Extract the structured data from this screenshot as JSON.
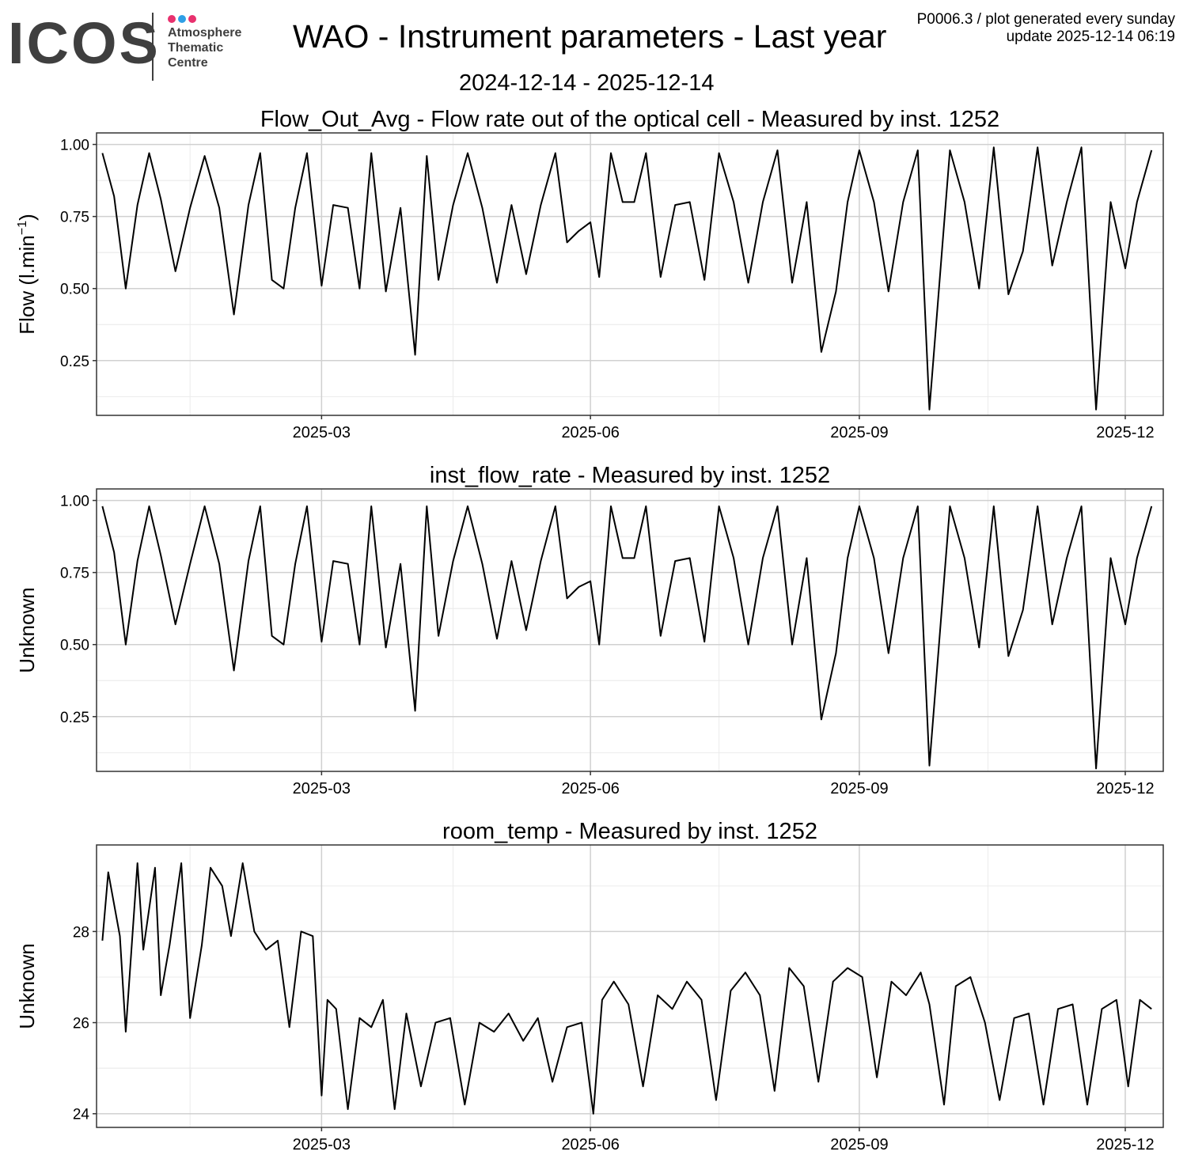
{
  "header": {
    "logo_text": "ICOS",
    "logo_sub": [
      "Atmosphere",
      "Thematic",
      "Centre"
    ],
    "logo_dot_colors": [
      "#e8316e",
      "#2e9fe6",
      "#e8316e"
    ],
    "title": "WAO - Instrument parameters - Last year",
    "date_range": "2024-12-14 - 2025-12-14",
    "meta_line1": "P0006.3 / plot generated every sunday",
    "meta_line2": "update  2025-12-14 06:19"
  },
  "colors": {
    "line": "#000000",
    "major_grid": "#d0d0d0",
    "minor_grid": "#ebebeb",
    "border": "#333333"
  },
  "chart_data": [
    {
      "type": "line",
      "title": "Flow_Out_Avg - Flow rate out of the optical cell - Measured by inst. 1252",
      "ylabel": "Flow (l.min",
      "ylabel_sup": "−1",
      "ylabel_end": ")",
      "xlim": [
        "2024-12-14",
        "2025-12-14"
      ],
      "ylim": [
        0.06,
        1.04
      ],
      "yticks": [
        0.25,
        0.5,
        0.75,
        1.0
      ],
      "ytick_labels": [
        "0.25",
        "0.50",
        "0.75",
        "1.00"
      ],
      "xticks": [
        "2025-03-01",
        "2025-06-01",
        "2025-09-01",
        "2025-12-01"
      ],
      "xtick_labels": [
        "2025-03",
        "2025-06",
        "2025-09",
        "2025-12"
      ],
      "grid": true,
      "series": [
        {
          "x": [
            "2024-12-16",
            "2024-12-20",
            "2024-12-24",
            "2024-12-28",
            "2025-01-01",
            "2025-01-05",
            "2025-01-10",
            "2025-01-15",
            "2025-01-20",
            "2025-01-25",
            "2025-01-30",
            "2025-02-04",
            "2025-02-08",
            "2025-02-12",
            "2025-02-16",
            "2025-02-20",
            "2025-02-24",
            "2025-03-01",
            "2025-03-05",
            "2025-03-10",
            "2025-03-14",
            "2025-03-18",
            "2025-03-23",
            "2025-03-28",
            "2025-04-02",
            "2025-04-06",
            "2025-04-10",
            "2025-04-15",
            "2025-04-20",
            "2025-04-25",
            "2025-04-30",
            "2025-05-05",
            "2025-05-10",
            "2025-05-15",
            "2025-05-20",
            "2025-05-24",
            "2025-05-28",
            "2025-06-01",
            "2025-06-04",
            "2025-06-08",
            "2025-06-12",
            "2025-06-16",
            "2025-06-20",
            "2025-06-25",
            "2025-06-30",
            "2025-07-05",
            "2025-07-10",
            "2025-07-15",
            "2025-07-20",
            "2025-07-25",
            "2025-07-30",
            "2025-08-04",
            "2025-08-09",
            "2025-08-14",
            "2025-08-19",
            "2025-08-24",
            "2025-08-28",
            "2025-09-01",
            "2025-09-06",
            "2025-09-11",
            "2025-09-16",
            "2025-09-21",
            "2025-09-25",
            "2025-10-02",
            "2025-10-07",
            "2025-10-12",
            "2025-10-17",
            "2025-10-22",
            "2025-10-27",
            "2025-11-01",
            "2025-11-06",
            "2025-11-11",
            "2025-11-16",
            "2025-11-21",
            "2025-11-26",
            "2025-12-01",
            "2025-12-05",
            "2025-12-10"
          ],
          "y": [
            0.97,
            0.82,
            0.5,
            0.79,
            0.97,
            0.81,
            0.56,
            0.78,
            0.96,
            0.78,
            0.41,
            0.79,
            0.97,
            0.53,
            0.5,
            0.78,
            0.97,
            0.51,
            0.79,
            0.78,
            0.5,
            0.97,
            0.49,
            0.78,
            0.27,
            0.96,
            0.53,
            0.79,
            0.97,
            0.78,
            0.52,
            0.79,
            0.55,
            0.79,
            0.97,
            0.66,
            0.7,
            0.73,
            0.54,
            0.97,
            0.8,
            0.8,
            0.97,
            0.54,
            0.79,
            0.8,
            0.53,
            0.97,
            0.8,
            0.52,
            0.8,
            0.98,
            0.52,
            0.8,
            0.28,
            0.49,
            0.8,
            0.98,
            0.8,
            0.49,
            0.8,
            0.98,
            0.08,
            0.98,
            0.8,
            0.5,
            0.99,
            0.48,
            0.63,
            0.99,
            0.58,
            0.8,
            0.99,
            0.08,
            0.8,
            0.57,
            0.8,
            0.98
          ]
        }
      ]
    },
    {
      "type": "line",
      "title": "inst_flow_rate - Measured by inst. 1252",
      "ylabel": "Unknown",
      "ylabel_sup": "",
      "ylabel_end": "",
      "xlim": [
        "2024-12-14",
        "2025-12-14"
      ],
      "ylim": [
        0.06,
        1.04
      ],
      "yticks": [
        0.25,
        0.5,
        0.75,
        1.0
      ],
      "ytick_labels": [
        "0.25",
        "0.50",
        "0.75",
        "1.00"
      ],
      "xticks": [
        "2025-03-01",
        "2025-06-01",
        "2025-09-01",
        "2025-12-01"
      ],
      "xtick_labels": [
        "2025-03",
        "2025-06",
        "2025-09",
        "2025-12"
      ],
      "grid": true,
      "series": [
        {
          "x": [
            "2024-12-16",
            "2024-12-20",
            "2024-12-24",
            "2024-12-28",
            "2025-01-01",
            "2025-01-05",
            "2025-01-10",
            "2025-01-15",
            "2025-01-20",
            "2025-01-25",
            "2025-01-30",
            "2025-02-04",
            "2025-02-08",
            "2025-02-12",
            "2025-02-16",
            "2025-02-20",
            "2025-02-24",
            "2025-03-01",
            "2025-03-05",
            "2025-03-10",
            "2025-03-14",
            "2025-03-18",
            "2025-03-23",
            "2025-03-28",
            "2025-04-02",
            "2025-04-06",
            "2025-04-10",
            "2025-04-15",
            "2025-04-20",
            "2025-04-25",
            "2025-04-30",
            "2025-05-05",
            "2025-05-10",
            "2025-05-15",
            "2025-05-20",
            "2025-05-24",
            "2025-05-28",
            "2025-06-01",
            "2025-06-04",
            "2025-06-08",
            "2025-06-12",
            "2025-06-16",
            "2025-06-20",
            "2025-06-25",
            "2025-06-30",
            "2025-07-05",
            "2025-07-10",
            "2025-07-15",
            "2025-07-20",
            "2025-07-25",
            "2025-07-30",
            "2025-08-04",
            "2025-08-09",
            "2025-08-14",
            "2025-08-19",
            "2025-08-24",
            "2025-08-28",
            "2025-09-01",
            "2025-09-06",
            "2025-09-11",
            "2025-09-16",
            "2025-09-21",
            "2025-09-25",
            "2025-10-02",
            "2025-10-07",
            "2025-10-12",
            "2025-10-17",
            "2025-10-22",
            "2025-10-27",
            "2025-11-01",
            "2025-11-06",
            "2025-11-11",
            "2025-11-16",
            "2025-11-21",
            "2025-11-26",
            "2025-12-01",
            "2025-12-05",
            "2025-12-10"
          ],
          "y": [
            0.98,
            0.82,
            0.5,
            0.79,
            0.98,
            0.81,
            0.57,
            0.78,
            0.98,
            0.78,
            0.41,
            0.79,
            0.98,
            0.53,
            0.5,
            0.78,
            0.98,
            0.51,
            0.79,
            0.78,
            0.5,
            0.98,
            0.49,
            0.78,
            0.27,
            0.98,
            0.53,
            0.79,
            0.98,
            0.78,
            0.52,
            0.79,
            0.55,
            0.79,
            0.98,
            0.66,
            0.7,
            0.72,
            0.5,
            0.98,
            0.8,
            0.8,
            0.98,
            0.53,
            0.79,
            0.8,
            0.51,
            0.98,
            0.8,
            0.5,
            0.8,
            0.98,
            0.5,
            0.8,
            0.24,
            0.47,
            0.8,
            0.98,
            0.8,
            0.47,
            0.8,
            0.98,
            0.08,
            0.98,
            0.8,
            0.49,
            0.98,
            0.46,
            0.62,
            0.98,
            0.57,
            0.8,
            0.98,
            0.07,
            0.8,
            0.57,
            0.8,
            0.98
          ]
        }
      ]
    },
    {
      "type": "line",
      "title": "room_temp - Measured by inst. 1252",
      "ylabel": "Unknown",
      "ylabel_sup": "",
      "ylabel_end": "",
      "xlim": [
        "2024-12-14",
        "2025-12-14"
      ],
      "ylim": [
        23.7,
        29.9
      ],
      "yticks": [
        24,
        26,
        28
      ],
      "ytick_labels": [
        "24",
        "26",
        "28"
      ],
      "xticks": [
        "2025-03-01",
        "2025-06-01",
        "2025-09-01",
        "2025-12-01"
      ],
      "xtick_labels": [
        "2025-03",
        "2025-06",
        "2025-09",
        "2025-12"
      ],
      "grid": true,
      "series": [
        {
          "x": [
            "2024-12-16",
            "2024-12-18",
            "2024-12-22",
            "2024-12-24",
            "2024-12-28",
            "2024-12-30",
            "2025-01-03",
            "2025-01-05",
            "2025-01-08",
            "2025-01-12",
            "2025-01-15",
            "2025-01-19",
            "2025-01-22",
            "2025-01-26",
            "2025-01-29",
            "2025-02-02",
            "2025-02-06",
            "2025-02-10",
            "2025-02-14",
            "2025-02-18",
            "2025-02-22",
            "2025-02-26",
            "2025-03-01",
            "2025-03-03",
            "2025-03-06",
            "2025-03-10",
            "2025-03-14",
            "2025-03-18",
            "2025-03-22",
            "2025-03-26",
            "2025-03-30",
            "2025-04-04",
            "2025-04-09",
            "2025-04-14",
            "2025-04-19",
            "2025-04-24",
            "2025-04-29",
            "2025-05-04",
            "2025-05-09",
            "2025-05-14",
            "2025-05-19",
            "2025-05-24",
            "2025-05-29",
            "2025-06-02",
            "2025-06-05",
            "2025-06-09",
            "2025-06-14",
            "2025-06-19",
            "2025-06-24",
            "2025-06-29",
            "2025-07-04",
            "2025-07-09",
            "2025-07-14",
            "2025-07-19",
            "2025-07-24",
            "2025-07-29",
            "2025-08-03",
            "2025-08-08",
            "2025-08-13",
            "2025-08-18",
            "2025-08-23",
            "2025-08-28",
            "2025-09-02",
            "2025-09-07",
            "2025-09-12",
            "2025-09-17",
            "2025-09-22",
            "2025-09-25",
            "2025-09-30",
            "2025-10-04",
            "2025-10-09",
            "2025-10-14",
            "2025-10-19",
            "2025-10-24",
            "2025-10-29",
            "2025-11-03",
            "2025-11-08",
            "2025-11-13",
            "2025-11-18",
            "2025-11-23",
            "2025-11-28",
            "2025-12-02",
            "2025-12-06",
            "2025-12-10"
          ],
          "y": [
            27.8,
            29.3,
            27.9,
            25.8,
            29.5,
            27.6,
            29.4,
            26.6,
            27.7,
            29.5,
            26.1,
            27.7,
            29.4,
            29.0,
            27.9,
            29.5,
            28.0,
            27.6,
            27.8,
            25.9,
            28.0,
            27.9,
            24.4,
            26.5,
            26.3,
            24.1,
            26.1,
            25.9,
            26.5,
            24.1,
            26.2,
            24.6,
            26.0,
            26.1,
            24.2,
            26.0,
            25.8,
            26.2,
            25.6,
            26.1,
            24.7,
            25.9,
            26.0,
            24.0,
            26.5,
            26.9,
            26.4,
            24.6,
            26.6,
            26.3,
            26.9,
            26.5,
            24.3,
            26.7,
            27.1,
            26.6,
            24.5,
            27.2,
            26.8,
            24.7,
            26.9,
            27.2,
            27.0,
            24.8,
            26.9,
            26.6,
            27.1,
            26.4,
            24.2,
            26.8,
            27.0,
            26.0,
            24.3,
            26.1,
            26.2,
            24.2,
            26.3,
            26.4,
            24.2,
            26.3,
            26.5,
            24.6,
            26.5,
            26.3
          ]
        }
      ]
    }
  ]
}
